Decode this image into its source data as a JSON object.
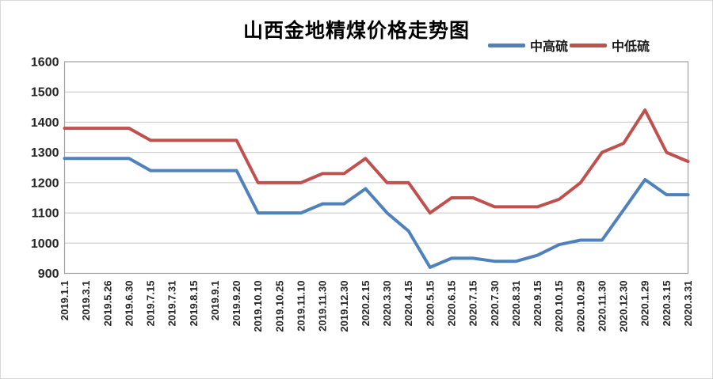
{
  "chart_data": {
    "type": "line",
    "title": "山西金地精煤价格走势图",
    "categories": [
      "2019.1.1",
      "2019.3.1",
      "2019.5.26",
      "2019.6.30",
      "2019.7.15",
      "2019.7.31",
      "2019.8.15",
      "2019.9.1",
      "2019.9.20",
      "2019.10.10",
      "2019.10.25",
      "2019.11.10",
      "2019.11.30",
      "2019.12.30",
      "2020.2.15",
      "2020.3.30",
      "2020.4.15",
      "2020.5.15",
      "2020.6.15",
      "2020.7.15",
      "2020.7.30",
      "2020.8.31",
      "2020.9.15",
      "2020.10.15",
      "2020.10.29",
      "2020.11.30",
      "2020.12.30",
      "2020.1.29",
      "2020.3.15",
      "2020.3.31"
    ],
    "series": [
      {
        "name": "中高硫",
        "color": "#4F81BD",
        "values": [
          1280,
          1280,
          1280,
          1280,
          1240,
          1240,
          1240,
          1240,
          1240,
          1100,
          1100,
          1100,
          1130,
          1130,
          1180,
          1100,
          1040,
          920,
          950,
          950,
          940,
          940,
          960,
          995,
          1010,
          1010,
          1110,
          1210,
          1160,
          1160
        ]
      },
      {
        "name": "中低硫",
        "color": "#C0504D",
        "values": [
          1380,
          1380,
          1380,
          1380,
          1340,
          1340,
          1340,
          1340,
          1340,
          1200,
          1200,
          1200,
          1230,
          1230,
          1280,
          1200,
          1200,
          1100,
          1150,
          1150,
          1120,
          1120,
          1120,
          1145,
          1200,
          1300,
          1330,
          1440,
          1300,
          1270
        ]
      }
    ],
    "ylim": [
      900,
      1600
    ],
    "y_ticks": [
      1600,
      1500,
      1400,
      1300,
      1200,
      1100,
      1000,
      900
    ],
    "grid": true,
    "legend_position": "top-right"
  },
  "colors": {
    "grid": "#c6c6c6",
    "plot_border": "#a0a0a0",
    "tick_text": "#262626",
    "background": "#ffffff"
  }
}
